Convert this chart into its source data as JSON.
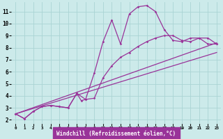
{
  "background_color": "#cceaea",
  "grid_color": "#aad4d4",
  "line_color": "#993399",
  "marker_color": "#993399",
  "xlabel": "Windchill (Refroidissement éolien,°C)",
  "xlabel_color": "#ffffff",
  "xlabel_bg": "#993399",
  "xlim": [
    -0.5,
    23.5
  ],
  "ylim": [
    1.7,
    11.8
  ],
  "yticks": [
    2,
    3,
    4,
    5,
    6,
    7,
    8,
    9,
    10,
    11
  ],
  "xticks": [
    0,
    1,
    2,
    3,
    4,
    5,
    6,
    7,
    8,
    9,
    10,
    11,
    12,
    13,
    14,
    15,
    16,
    17,
    18,
    19,
    20,
    21,
    22,
    23
  ],
  "series1_x": [
    0,
    1,
    2,
    3,
    4,
    5,
    6,
    7,
    7.5,
    8,
    9,
    10,
    11,
    12,
    13,
    14,
    15,
    16,
    17,
    18,
    19,
    20,
    21,
    22,
    23
  ],
  "series1_y": [
    2.5,
    2.1,
    2.7,
    3.1,
    3.2,
    3.1,
    3.0,
    4.2,
    3.6,
    3.7,
    5.9,
    8.5,
    10.3,
    8.3,
    10.8,
    11.4,
    11.5,
    11.0,
    9.5,
    8.6,
    8.5,
    8.8,
    8.8,
    8.3,
    8.3
  ],
  "series1_markers_x": [
    0,
    1,
    2,
    3,
    4,
    5,
    6,
    7,
    8,
    9,
    10,
    11,
    12,
    13,
    14,
    15,
    16,
    17,
    18,
    19,
    20,
    21,
    22,
    23
  ],
  "series1_markers_y": [
    2.5,
    2.1,
    2.7,
    3.1,
    3.2,
    3.1,
    3.0,
    4.2,
    3.7,
    5.9,
    8.5,
    10.3,
    8.3,
    10.8,
    11.4,
    11.5,
    11.0,
    9.5,
    8.6,
    8.5,
    8.8,
    8.8,
    8.3,
    8.3
  ],
  "series2_x": [
    0,
    1,
    2,
    3,
    4,
    5,
    6,
    7,
    8,
    9,
    10,
    11,
    12,
    13,
    14,
    15,
    16,
    17,
    18,
    19,
    20,
    21,
    22,
    23
  ],
  "series2_y": [
    2.5,
    2.1,
    2.7,
    3.1,
    3.2,
    3.1,
    3.0,
    4.2,
    3.7,
    3.8,
    5.5,
    6.5,
    7.2,
    7.6,
    8.1,
    8.5,
    8.8,
    9.0,
    9.0,
    8.6,
    8.5,
    8.8,
    8.8,
    8.3
  ],
  "line1_x": [
    0,
    23
  ],
  "line1_y": [
    2.5,
    8.4
  ],
  "line2_x": [
    0,
    23
  ],
  "line2_y": [
    2.5,
    7.6
  ]
}
